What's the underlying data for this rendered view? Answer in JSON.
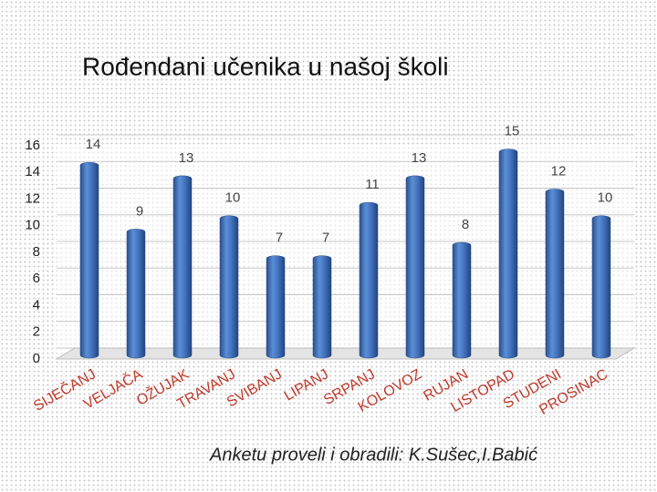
{
  "chart_data": {
    "type": "bar",
    "title": "Rođendani učenika u našoj školi",
    "caption": "Anketu proveli i obradili: K.Sušec,I.Babić",
    "categories": [
      "SIJEČANJ",
      "VELJAČA",
      "OŽUJAK",
      "TRAVANJ",
      "SVIBANJ",
      "LIPANJ",
      "SRPANJ",
      "KOLOVOZ",
      "RUJAN",
      "LISTOPAD",
      "STUDENI",
      "PROSINAC"
    ],
    "values": [
      14,
      9,
      13,
      10,
      7,
      7,
      11,
      13,
      8,
      15,
      12,
      10
    ],
    "color": "#4576c2",
    "label_color": "#c0392b",
    "ylim": [
      0,
      16
    ],
    "yticks": [
      0,
      2,
      4,
      6,
      8,
      10,
      12,
      14,
      16
    ],
    "grid": true
  }
}
